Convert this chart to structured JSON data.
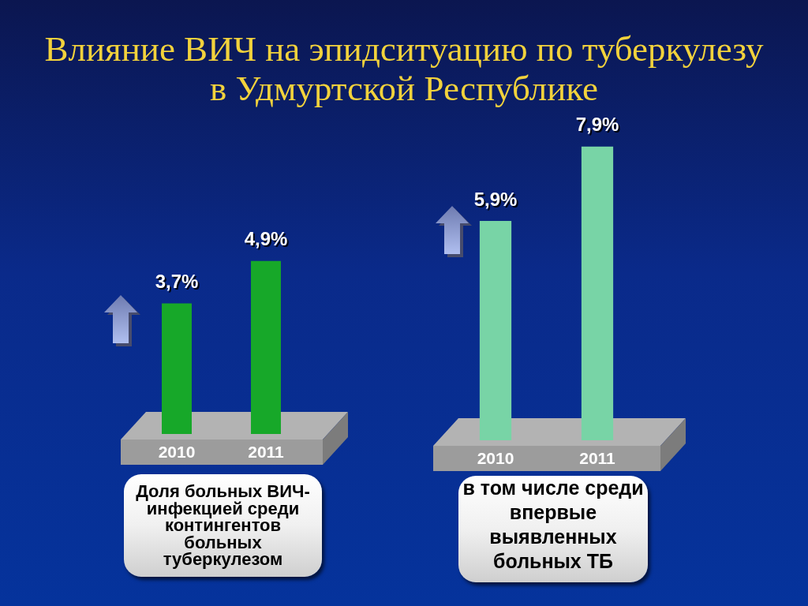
{
  "chart_data": [
    {
      "type": "bar",
      "title": "Влияние ВИЧ на эпидситуацию по туберкулезу в Удмуртской Республике",
      "xlabel": "Доля больных ВИЧ-инфекцией среди контингентов больных туберкулезом",
      "categories": [
        "2010",
        "2011"
      ],
      "values": [
        3.7,
        4.9
      ],
      "value_labels": [
        "3,7%",
        "4,9%"
      ],
      "color": "#17a829",
      "tick_labels": "x"
    },
    {
      "type": "bar",
      "xlabel": "в том числе среди впервые выявленных больных ТБ",
      "categories": [
        "2010",
        "2011"
      ],
      "values": [
        5.9,
        7.9
      ],
      "value_labels": [
        "5,9%",
        "7,9%"
      ],
      "color": "#78d4a6",
      "tick_labels": "x"
    }
  ]
}
